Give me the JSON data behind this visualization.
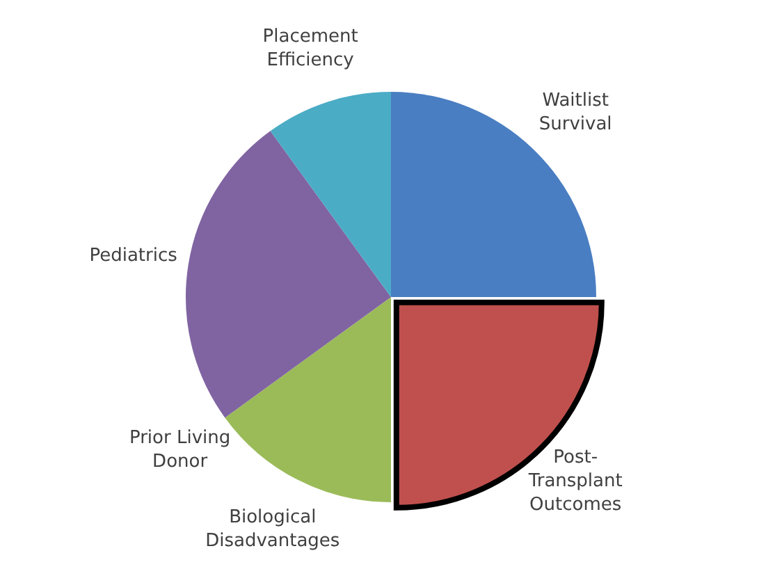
{
  "chart_data": {
    "type": "pie",
    "categories": [
      "Waitlist Survival",
      "Post-Transplant Outcomes",
      "Biological Disadvantages",
      "Prior Living Donor",
      "Pediatrics",
      "Placement Efficiency"
    ],
    "values": [
      25,
      25,
      15,
      0,
      25,
      10
    ],
    "colors": [
      "#4a7ec2",
      "#c0504d",
      "#9bbb59",
      "#f79646",
      "#8064a2",
      "#4bacc6"
    ],
    "legend": false
  }
}
